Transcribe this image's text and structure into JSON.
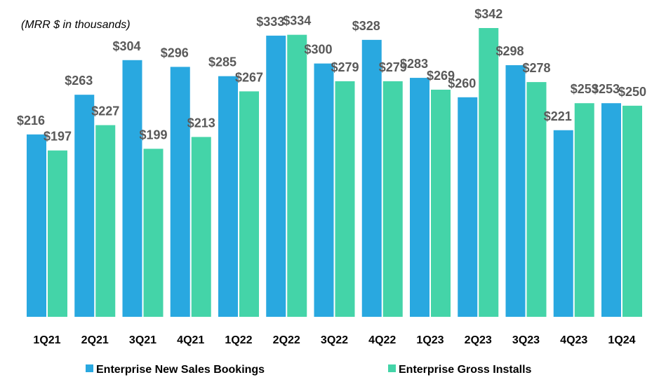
{
  "chart_data": {
    "type": "bar",
    "subtitle": "(MRR $ in thousands)",
    "categories": [
      "1Q21",
      "2Q21",
      "3Q21",
      "4Q21",
      "1Q22",
      "2Q22",
      "3Q22",
      "4Q22",
      "1Q23",
      "2Q23",
      "3Q23",
      "4Q23",
      "1Q24"
    ],
    "series": [
      {
        "name": "Enterprise New Sales Bookings",
        "color": "#29a8e0",
        "values": [
          216,
          263,
          304,
          296,
          285,
          333,
          300,
          328,
          283,
          260,
          298,
          221,
          253
        ],
        "value_labels": [
          "$216",
          "$263",
          "$304",
          "$296",
          "$285",
          "$333",
          "$300",
          "$328",
          "$283",
          "$260",
          "$298",
          "$221",
          "$253"
        ]
      },
      {
        "name": "Enterprise Gross Installs",
        "color": "#44d4a8",
        "values": [
          197,
          227,
          199,
          213,
          267,
          334,
          279,
          279,
          269,
          342,
          278,
          253,
          250
        ],
        "value_labels": [
          "$197",
          "$227",
          "$199",
          "$213",
          "$267",
          "$334",
          "$279",
          "$279",
          "$269",
          "$342",
          "$278",
          "$253",
          "$250"
        ]
      }
    ],
    "legend": "bottom"
  }
}
